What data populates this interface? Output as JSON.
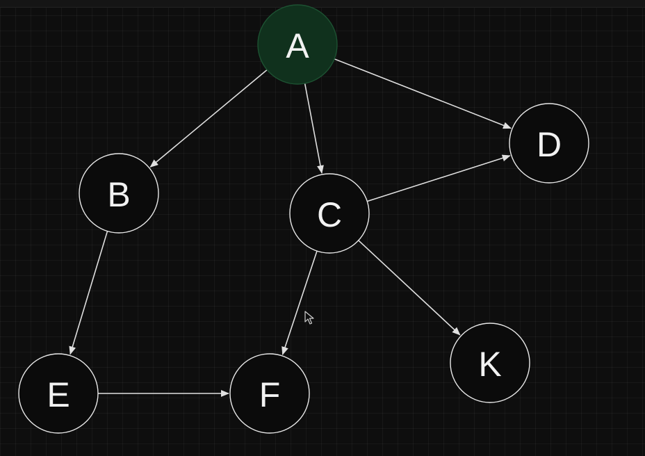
{
  "diagram": {
    "type": "directed-graph",
    "nodes": [
      {
        "id": "A",
        "label": "A",
        "highlighted": true
      },
      {
        "id": "B",
        "label": "B",
        "highlighted": false
      },
      {
        "id": "C",
        "label": "C",
        "highlighted": false
      },
      {
        "id": "D",
        "label": "D",
        "highlighted": false
      },
      {
        "id": "E",
        "label": "E",
        "highlighted": false
      },
      {
        "id": "F",
        "label": "F",
        "highlighted": false
      },
      {
        "id": "K",
        "label": "K",
        "highlighted": false
      }
    ],
    "edges": [
      {
        "from": "A",
        "to": "B"
      },
      {
        "from": "A",
        "to": "C"
      },
      {
        "from": "A",
        "to": "D"
      },
      {
        "from": "B",
        "to": "E"
      },
      {
        "from": "C",
        "to": "D"
      },
      {
        "from": "C",
        "to": "F"
      },
      {
        "from": "C",
        "to": "K"
      },
      {
        "from": "E",
        "to": "F"
      }
    ]
  },
  "colors": {
    "background": "#0e0e0e",
    "node_fill": "#0b0b0b",
    "node_highlight_fill": "#10311d",
    "node_stroke": "#e8e8e8",
    "edge": "#e0e0e0",
    "label": "#f2f2f2"
  },
  "icons": {
    "cursor": "mouse-pointer-icon"
  }
}
